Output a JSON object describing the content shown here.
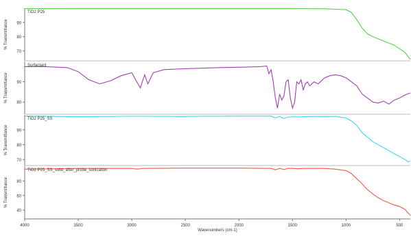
{
  "chart_data": {
    "type": "line",
    "xlabel": "Wavenumbers (cm-1)",
    "x_ticks": [
      4000,
      3500,
      3000,
      2500,
      2000,
      1500,
      1000,
      500
    ],
    "xlim": [
      4000,
      400
    ],
    "grid": false,
    "panels": [
      {
        "name": "TiO2 P25",
        "color": "#55d444",
        "ylabel": "% Transmittance",
        "ylim": [
          63,
          100
        ],
        "y_ticks": [
          90,
          80,
          70
        ],
        "x": [
          4000,
          3500,
          3000,
          2500,
          2000,
          1500,
          1200,
          1000,
          950,
          900,
          850,
          800,
          750,
          700,
          650,
          600,
          550,
          500,
          450,
          420,
          400
        ],
        "y": [
          99.7,
          99.8,
          99.8,
          99.8,
          99.8,
          99.8,
          99.6,
          99.0,
          97.0,
          92.0,
          86.0,
          82.0,
          80.0,
          78.5,
          77.0,
          75.5,
          74.0,
          71.5,
          69.0,
          66.0,
          64.0
        ]
      },
      {
        "name": "Surfactant",
        "color": "#a040b0",
        "ylabel": "% Transmittance",
        "ylim": [
          74,
          100
        ],
        "y_ticks": [
          90,
          80
        ],
        "x": [
          4000,
          3800,
          3600,
          3500,
          3400,
          3300,
          3200,
          3100,
          3000,
          2960,
          2920,
          2880,
          2850,
          2800,
          2700,
          2500,
          2200,
          2000,
          1800,
          1740,
          1720,
          1700,
          1680,
          1660,
          1640,
          1620,
          1600,
          1580,
          1560,
          1540,
          1520,
          1500,
          1480,
          1460,
          1440,
          1420,
          1400,
          1380,
          1360,
          1340,
          1300,
          1260,
          1200,
          1150,
          1100,
          1050,
          1000,
          950,
          900,
          850,
          800,
          750,
          700,
          650,
          600,
          550,
          500,
          450,
          400
        ],
        "y": [
          97.5,
          97.5,
          97.0,
          95.0,
          91.0,
          89.0,
          90.5,
          93.0,
          94.5,
          90.5,
          87.0,
          93.5,
          89.0,
          94.5,
          96.0,
          96.5,
          97.0,
          97.2,
          97.5,
          97.8,
          94.0,
          96.0,
          90.0,
          82.0,
          77.0,
          84.0,
          81.0,
          83.0,
          90.0,
          91.0,
          82.0,
          77.0,
          80.0,
          90.0,
          89.0,
          91.0,
          86.0,
          89.0,
          90.0,
          88.0,
          90.0,
          89.0,
          92.0,
          93.0,
          93.5,
          93.0,
          92.0,
          90.0,
          88.0,
          84.0,
          82.0,
          80.0,
          79.5,
          80.5,
          79.0,
          81.0,
          82.0,
          83.5,
          84.5
        ]
      },
      {
        "name": "TiO2 P25_SS",
        "color": "#3ed6ec",
        "ylabel": "% Transmittance",
        "ylim": [
          66,
          100
        ],
        "y_ticks": [
          90,
          80,
          70
        ],
        "x": [
          4000,
          3500,
          3000,
          2500,
          2000,
          1700,
          1660,
          1620,
          1580,
          1550,
          1500,
          1450,
          1400,
          1300,
          1200,
          1100,
          1000,
          950,
          900,
          850,
          800,
          750,
          700,
          650,
          600,
          550,
          500,
          450,
          420,
          400
        ],
        "y": [
          99.2,
          98.8,
          99.1,
          99.0,
          99.2,
          99.2,
          98.0,
          99.0,
          97.6,
          98.4,
          98.8,
          98.6,
          98.8,
          99.0,
          99.0,
          99.0,
          98.0,
          96.0,
          93.0,
          88.0,
          85.0,
          82.0,
          80.0,
          78.0,
          76.0,
          74.0,
          72.0,
          70.0,
          68.5,
          69.0
        ]
      },
      {
        "name": "TiO2 P25_SS_solid_after_probe_sonication",
        "color": "#ee5a48",
        "ylabel": "% Transmittance",
        "ylim": [
          28,
          100
        ],
        "y_ticks": [
          80,
          60,
          40
        ],
        "x": [
          4000,
          3500,
          3000,
          2950,
          2900,
          2500,
          2000,
          1700,
          1660,
          1620,
          1580,
          1540,
          1500,
          1450,
          1400,
          1300,
          1200,
          1100,
          1000,
          950,
          900,
          850,
          800,
          750,
          700,
          650,
          600,
          550,
          500,
          450,
          420,
          400
        ],
        "y": [
          96.0,
          97.0,
          97.0,
          96.0,
          97.0,
          97.5,
          97.5,
          97.0,
          95.0,
          97.0,
          95.5,
          97.0,
          97.0,
          96.5,
          97.0,
          97.0,
          97.0,
          96.0,
          94.0,
          90.0,
          83.0,
          76.0,
          68.0,
          62.0,
          57.0,
          53.0,
          50.0,
          47.0,
          45.0,
          41.0,
          36.0,
          33.0
        ]
      }
    ]
  }
}
